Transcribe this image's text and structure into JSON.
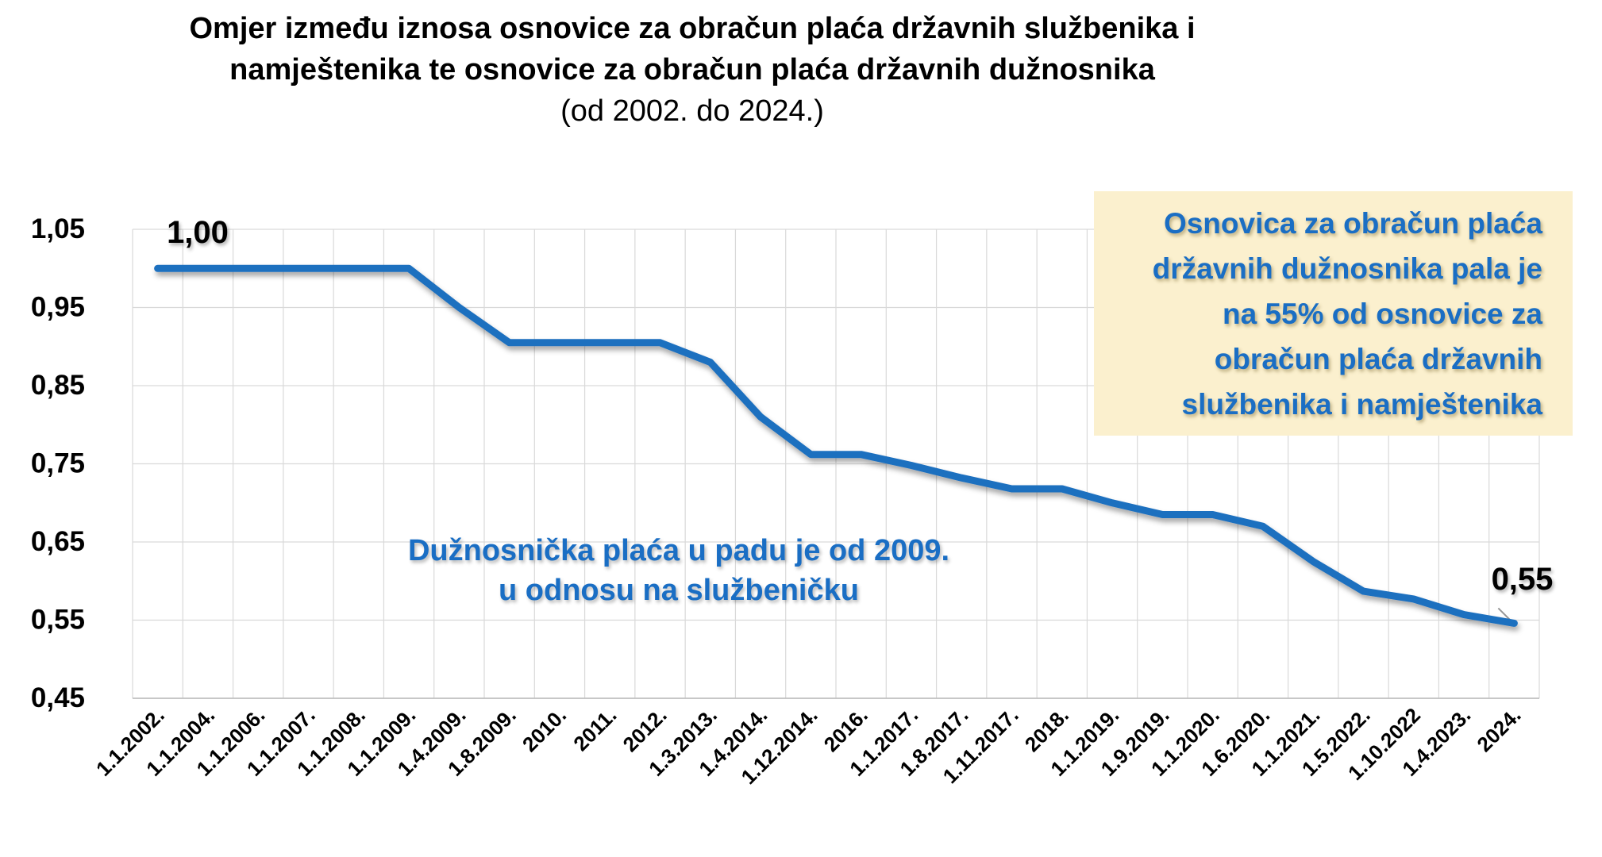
{
  "title": {
    "line1": "Omjer između iznosa osnovice za obračun plaća državnih službenika i",
    "line2": "namještenika te osnovice za obračun plaća državnih dužnosnika",
    "line3": "(od 2002. do 2024.)"
  },
  "annotations": {
    "callout_box": {
      "lines": [
        "Osnovica za obračun plaća",
        "državnih dužnosnika pala je",
        "na 55% od osnovice za",
        "obračun plaća državnih",
        "službenika i namještenika"
      ],
      "bg_color": "#FBF0CE",
      "text_color": "#1A6EC4"
    },
    "trend_note": {
      "lines": [
        "Dužnosnička plaća u padu je od 2009.",
        "u odnosu na službeničku"
      ],
      "text_color": "#1A6EC4"
    }
  },
  "chart_data": {
    "type": "line",
    "title": "Omjer između iznosa osnovice za obračun plaća državnih službenika i namještenika te osnovice za obračun plaća državnih dužnosnika (od 2002. do 2024.)",
    "categories": [
      "1.1.2002.",
      "1.1.2004.",
      "1.1.2006.",
      "1.1.2007.",
      "1.1.2008.",
      "1.1.2009.",
      "1.4.2009.",
      "1.8.2009.",
      "2010.",
      "2011.",
      "2012.",
      "1.3.2013.",
      "1.4.2014.",
      "1.12.2014.",
      "2016.",
      "1.1.2017.",
      "1.8.2017.",
      "1.11.2017.",
      "2018.",
      "1.1.2019.",
      "1.9.2019.",
      "1.1.2020.",
      "1.6.2020.",
      "1.1.2021.",
      "1.5.2022.",
      "1.10.2022",
      "1.4.2023.",
      "2024."
    ],
    "values": [
      1.0,
      1.0,
      1.0,
      1.0,
      1.0,
      1.0,
      0.95,
      0.905,
      0.905,
      0.905,
      0.905,
      0.88,
      0.81,
      0.762,
      0.762,
      0.748,
      0.732,
      0.718,
      0.718,
      0.7,
      0.685,
      0.685,
      0.67,
      0.625,
      0.587,
      0.577,
      0.557,
      0.546
    ],
    "point_labels": {
      "first": "1,00",
      "last": "0,55"
    },
    "y_ticks": [
      {
        "value": 1.05,
        "label": "1,05"
      },
      {
        "value": 0.95,
        "label": "0,95"
      },
      {
        "value": 0.85,
        "label": "0,85"
      },
      {
        "value": 0.75,
        "label": "0,75"
      },
      {
        "value": 0.65,
        "label": "0,65"
      },
      {
        "value": 0.55,
        "label": "0,55"
      },
      {
        "value": 0.45,
        "label": "0,45"
      }
    ],
    "ylim": [
      0.45,
      1.05
    ],
    "grid": true,
    "legend": "none",
    "series_color": "#1E6FBF",
    "grid_color": "#D9D9D9",
    "axis_color": "#BFBFBF",
    "leader_color": "#969696"
  }
}
